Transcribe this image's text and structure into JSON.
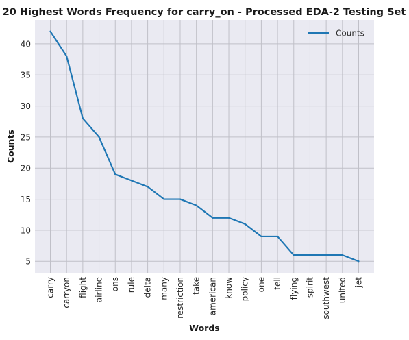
{
  "chart_data": {
    "type": "line",
    "title": "20 Highest Words Frequency for carry_on - Processed EDA-2 Testing Set",
    "xlabel": "Words",
    "ylabel": "Counts",
    "categories": [
      "carry",
      "carryon",
      "flight",
      "airline",
      "ons",
      "rule",
      "delta",
      "many",
      "restriction",
      "take",
      "american",
      "know",
      "policy",
      "one",
      "tell",
      "flying",
      "spirit",
      "southwest",
      "united",
      "jet"
    ],
    "series": [
      {
        "name": "Counts",
        "values": [
          42,
          38,
          28,
          25,
          19,
          18,
          17,
          15,
          15,
          14,
          12,
          12,
          11,
          9,
          9,
          6,
          6,
          6,
          6,
          5
        ]
      }
    ],
    "yticks": [
      5,
      10,
      15,
      20,
      25,
      30,
      35,
      40
    ],
    "ylim": [
      3.15,
      43.85
    ],
    "grid": true,
    "legend_position": "top-right",
    "colors": {
      "line": "#1f77b4",
      "plot_bg": "#eaeaf2",
      "grid": "#c0c0c8"
    }
  }
}
